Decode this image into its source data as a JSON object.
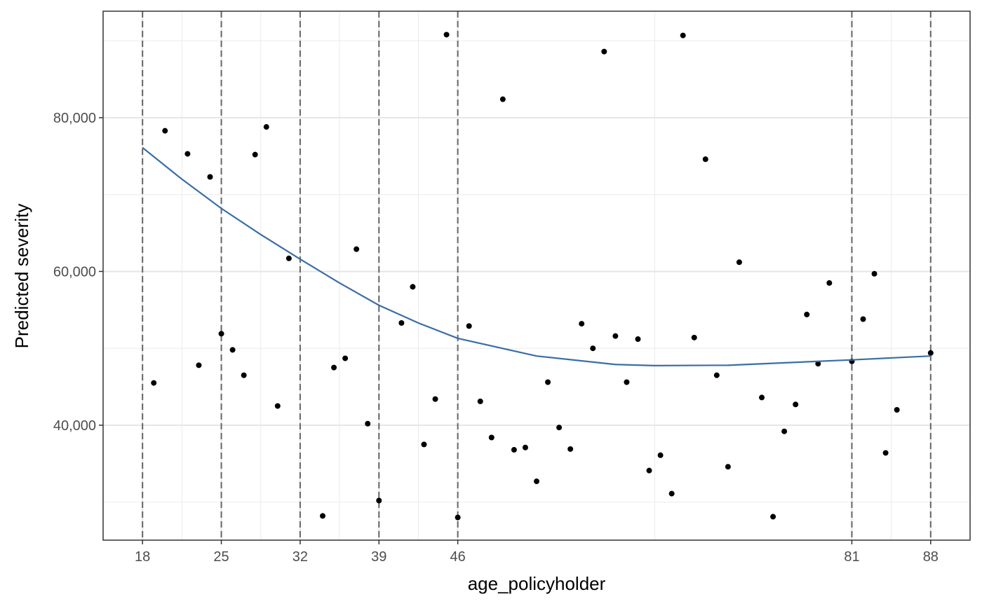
{
  "chart_data": {
    "type": "scatter",
    "x_label": "age_policyholder",
    "y_label": "Predicted severity",
    "xlim": [
      14.5,
      91.5
    ],
    "ylim": [
      25050,
      93850
    ],
    "xticks": [
      18,
      25,
      32,
      39,
      46,
      81,
      88
    ],
    "yticks": [
      {
        "value": 40000,
        "label": "40,000"
      },
      {
        "value": 60000,
        "label": "60,000"
      },
      {
        "value": 80000,
        "label": "80,000"
      }
    ],
    "x_minor_grid": [
      21.5,
      28.5,
      35.5,
      42.5,
      63.5,
      84.5
    ],
    "y_minor_grid": [
      30000,
      50000,
      70000,
      90000
    ],
    "grid": true,
    "vlines": [
      18,
      25,
      32,
      39,
      46,
      81,
      88
    ],
    "series": [
      {
        "color": "#000000",
        "x": [
          19,
          20,
          22,
          23,
          24,
          25,
          26,
          27,
          28,
          29,
          30,
          31,
          34,
          35,
          36,
          37,
          38,
          39,
          41,
          42,
          43,
          44,
          45,
          46,
          47,
          48,
          49,
          50,
          51,
          52,
          53,
          54,
          55,
          56,
          57,
          58,
          59,
          60,
          61,
          62,
          63,
          64,
          65,
          66,
          67,
          68,
          69,
          70,
          71,
          73,
          74,
          75,
          76,
          77,
          78,
          79,
          81,
          82,
          83,
          84,
          85,
          88
        ],
        "values": [
          45500,
          78300,
          75300,
          47800,
          72300,
          51900,
          49800,
          46500,
          75200,
          78800,
          42500,
          61700,
          28200,
          47500,
          48700,
          62900,
          40200,
          30200,
          53300,
          58000,
          37500,
          43400,
          90800,
          28000,
          52900,
          43100,
          38400,
          82400,
          36800,
          37100,
          32700,
          45600,
          39700,
          36900,
          53200,
          50000,
          88600,
          51600,
          45600,
          51200,
          34100,
          36100,
          31100,
          90700,
          51400,
          74600,
          46500,
          34600,
          61200,
          43600,
          28100,
          39200,
          42700,
          54400,
          48000,
          58500,
          48300,
          53800,
          59700,
          36400,
          42000,
          49400
        ]
      }
    ],
    "trend": {
      "type": "line",
      "color": "#3a6ea5",
      "x": [
        18,
        21.5,
        25,
        28.5,
        32,
        35.5,
        39,
        42.5,
        46,
        53,
        60,
        63.5,
        70,
        81,
        88
      ],
      "values": [
        76100,
        72000,
        68200,
        64800,
        61600,
        58500,
        55600,
        53300,
        51300,
        49000,
        47900,
        47750,
        47800,
        48500,
        49000
      ]
    }
  }
}
